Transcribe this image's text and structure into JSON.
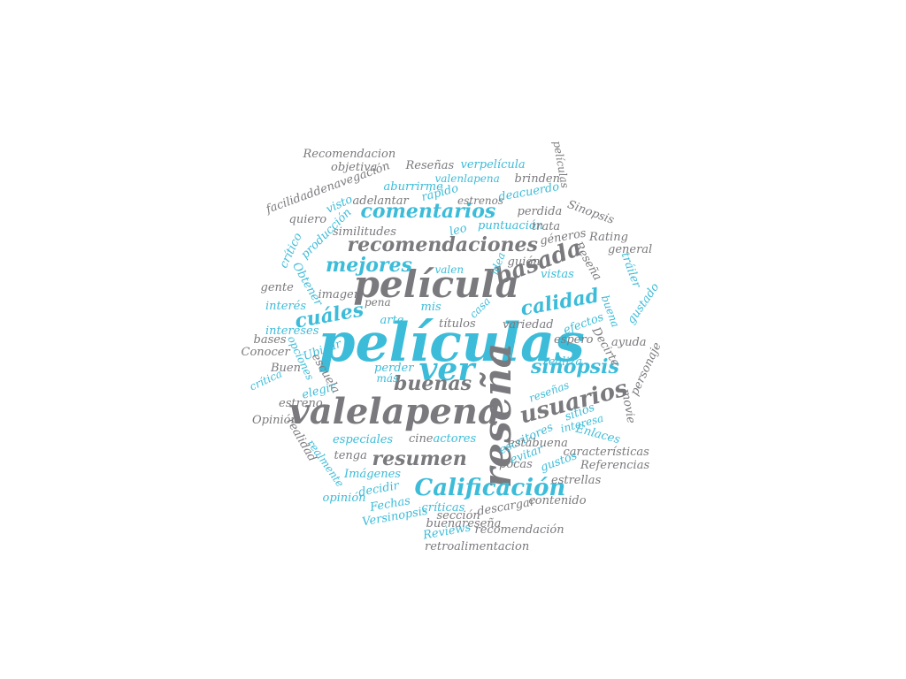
{
  "palette": {
    "gray": "#7a7a7e",
    "cyan": "#3cbcd9"
  },
  "words": [
    {
      "text": "películas",
      "color": "cyan"
    },
    {
      "text": "película",
      "color": "gray"
    },
    {
      "text": "valelapena",
      "color": "gray"
    },
    {
      "text": "reseña",
      "color": "gray"
    },
    {
      "text": "ver",
      "color": "cyan"
    },
    {
      "text": "Calificación",
      "color": "cyan"
    },
    {
      "text": "recomendaciones",
      "color": "gray"
    },
    {
      "text": "comentarios",
      "color": "cyan"
    },
    {
      "text": "basada",
      "color": "gray"
    },
    {
      "text": "calidad",
      "color": "cyan"
    },
    {
      "text": "mejores",
      "color": "cyan"
    },
    {
      "text": "cuáles",
      "color": "cyan"
    },
    {
      "text": "usuarios",
      "color": "gray"
    },
    {
      "text": "resumen",
      "color": "gray"
    },
    {
      "text": "buenas",
      "color": "gray"
    },
    {
      "text": "sinopsis",
      "color": "cyan"
    },
    {
      "text": "Recomendacion",
      "color": "gray"
    },
    {
      "text": "objetiva",
      "color": "gray"
    },
    {
      "text": "Reseñas",
      "color": "gray"
    },
    {
      "text": "verpelícula",
      "color": "cyan"
    },
    {
      "text": "películas",
      "color": "gray"
    },
    {
      "text": "facilidaddenavegación",
      "color": "gray"
    },
    {
      "text": "aburrirme",
      "color": "cyan"
    },
    {
      "text": "valenlapena",
      "color": "cyan"
    },
    {
      "text": "brinden",
      "color": "gray"
    },
    {
      "text": "adelantar",
      "color": "gray"
    },
    {
      "text": "rápido",
      "color": "cyan"
    },
    {
      "text": "deacuerdo",
      "color": "cyan"
    },
    {
      "text": "estrenos",
      "color": "gray"
    },
    {
      "text": "visto",
      "color": "cyan"
    },
    {
      "text": "perdida",
      "color": "gray"
    },
    {
      "text": "Sinopsis",
      "color": "gray"
    },
    {
      "text": "quiero",
      "color": "gray"
    },
    {
      "text": "producción",
      "color": "cyan"
    },
    {
      "text": "puntuación",
      "color": "cyan"
    },
    {
      "text": "trata",
      "color": "gray"
    },
    {
      "text": "similitudes",
      "color": "gray"
    },
    {
      "text": "leo",
      "color": "cyan"
    },
    {
      "text": "géneros",
      "color": "gray"
    },
    {
      "text": "Rating",
      "color": "gray"
    },
    {
      "text": "crítico",
      "color": "cyan"
    },
    {
      "text": "general",
      "color": "gray"
    },
    {
      "text": "guión",
      "color": "gray"
    },
    {
      "text": "idea",
      "color": "cyan"
    },
    {
      "text": "Reseña",
      "color": "gray"
    },
    {
      "text": "tráiler",
      "color": "cyan"
    },
    {
      "text": "valen",
      "color": "cyan"
    },
    {
      "text": "vistas",
      "color": "cyan"
    },
    {
      "text": "Obtener",
      "color": "cyan"
    },
    {
      "text": "gente",
      "color": "gray"
    },
    {
      "text": "imagen",
      "color": "gray"
    },
    {
      "text": "gustado",
      "color": "cyan"
    },
    {
      "text": "interés",
      "color": "cyan"
    },
    {
      "text": "pena",
      "color": "gray"
    },
    {
      "text": "mis",
      "color": "cyan"
    },
    {
      "text": "casa",
      "color": "cyan"
    },
    {
      "text": "buena",
      "color": "cyan"
    },
    {
      "text": "arte",
      "color": "cyan"
    },
    {
      "text": "títulos",
      "color": "gray"
    },
    {
      "text": "variedad",
      "color": "gray"
    },
    {
      "text": "efectos",
      "color": "cyan"
    },
    {
      "text": "intereses",
      "color": "cyan"
    },
    {
      "text": "espero",
      "color": "gray"
    },
    {
      "text": "bases",
      "color": "gray"
    },
    {
      "text": "Decirte",
      "color": "gray"
    },
    {
      "text": "ayuda",
      "color": "gray"
    },
    {
      "text": "Ubicar",
      "color": "cyan"
    },
    {
      "text": "Conocer",
      "color": "gray"
    },
    {
      "text": "opciones",
      "color": "cyan"
    },
    {
      "text": "realiza",
      "color": "cyan"
    },
    {
      "text": "personaje",
      "color": "gray"
    },
    {
      "text": "Buen",
      "color": "gray"
    },
    {
      "text": "escuela",
      "color": "gray"
    },
    {
      "text": "perder",
      "color": "cyan"
    },
    {
      "text": "crítica",
      "color": "cyan"
    },
    {
      "text": "más",
      "color": "cyan"
    },
    {
      "text": "elegir",
      "color": "cyan"
    },
    {
      "text": "reseñas",
      "color": "cyan"
    },
    {
      "text": "estreno",
      "color": "gray"
    },
    {
      "text": "sitios",
      "color": "cyan"
    },
    {
      "text": "movie",
      "color": "gray"
    },
    {
      "text": "Opinión",
      "color": "gray"
    },
    {
      "text": "interesa",
      "color": "cyan"
    },
    {
      "text": "realidad",
      "color": "gray"
    },
    {
      "text": "escritores",
      "color": "cyan"
    },
    {
      "text": "Enlaces",
      "color": "cyan"
    },
    {
      "text": "especiales",
      "color": "cyan"
    },
    {
      "text": "cine",
      "color": "gray"
    },
    {
      "text": "actores",
      "color": "cyan"
    },
    {
      "text": "estábuena",
      "color": "gray"
    },
    {
      "text": "características",
      "color": "gray"
    },
    {
      "text": "realmente",
      "color": "cyan"
    },
    {
      "text": "tenga",
      "color": "gray"
    },
    {
      "text": "evitar",
      "color": "cyan"
    },
    {
      "text": "gustos",
      "color": "cyan"
    },
    {
      "text": "Referencias",
      "color": "gray"
    },
    {
      "text": "pocas",
      "color": "gray"
    },
    {
      "text": "Imágenes",
      "color": "cyan"
    },
    {
      "text": "estrellas",
      "color": "gray"
    },
    {
      "text": "decidir",
      "color": "cyan"
    },
    {
      "text": "opinión",
      "color": "cyan"
    },
    {
      "text": "Fechas",
      "color": "cyan"
    },
    {
      "text": "contenido",
      "color": "gray"
    },
    {
      "text": "críticas",
      "color": "cyan"
    },
    {
      "text": "descargar",
      "color": "gray"
    },
    {
      "text": "sección",
      "color": "gray"
    },
    {
      "text": "Versinopsis",
      "color": "cyan"
    },
    {
      "text": "buenareseña",
      "color": "gray"
    },
    {
      "text": "Reviews",
      "color": "cyan"
    },
    {
      "text": "recomendación",
      "color": "gray"
    },
    {
      "text": "retroalimentacion",
      "color": "gray"
    }
  ]
}
